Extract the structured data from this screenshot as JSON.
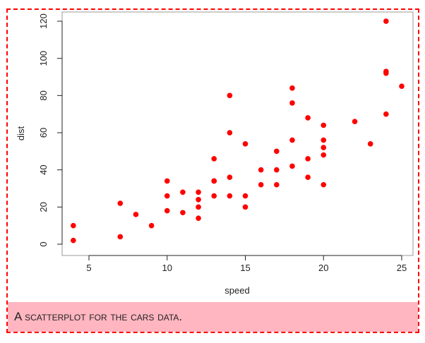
{
  "chart_data": {
    "type": "scatter",
    "title": "",
    "xlabel": "speed",
    "ylabel": "dist",
    "xlim": [
      3.16,
      25.84
    ],
    "ylim": [
      -4.72,
      126.72
    ],
    "xticks": [
      5,
      10,
      15,
      20,
      25
    ],
    "yticks": [
      0,
      20,
      40,
      60,
      80,
      100,
      120
    ],
    "point_color": "#ff0000",
    "x": [
      4,
      4,
      7,
      7,
      8,
      9,
      10,
      10,
      10,
      11,
      11,
      12,
      12,
      12,
      12,
      13,
      13,
      13,
      13,
      14,
      14,
      14,
      14,
      15,
      15,
      15,
      16,
      16,
      17,
      17,
      17,
      18,
      18,
      18,
      18,
      19,
      19,
      19,
      20,
      20,
      20,
      20,
      20,
      22,
      23,
      24,
      24,
      24,
      24,
      25
    ],
    "y": [
      2,
      10,
      4,
      22,
      16,
      10,
      18,
      26,
      34,
      17,
      28,
      14,
      20,
      24,
      28,
      26,
      34,
      34,
      46,
      26,
      36,
      60,
      80,
      20,
      26,
      54,
      32,
      40,
      32,
      40,
      50,
      42,
      56,
      76,
      84,
      36,
      46,
      68,
      32,
      48,
      52,
      56,
      64,
      66,
      54,
      70,
      92,
      93,
      120,
      85
    ]
  },
  "caption": "A scatterplot for the cars data."
}
